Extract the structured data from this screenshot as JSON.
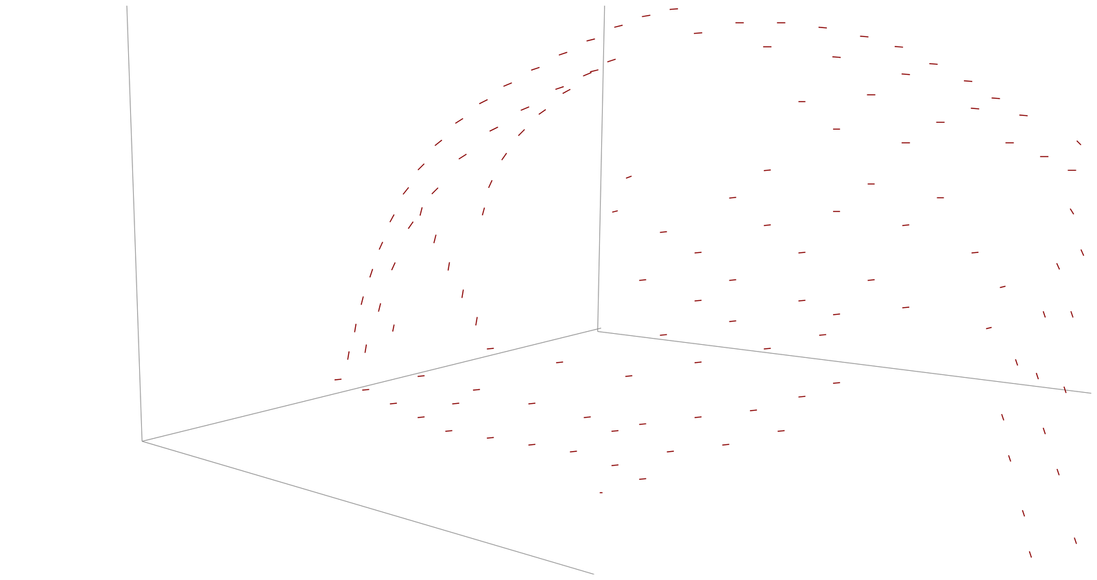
{
  "chart_data": {
    "type": "quiver",
    "color": "#8b0000",
    "grid": false,
    "tick_labels": false,
    "xlim": [
      0,
      1568
    ],
    "ylim": [
      0,
      829
    ],
    "x": [
      495,
      505,
      515,
      528,
      542,
      558,
      578,
      600,
      625,
      655,
      690,
      725,
      765,
      805,
      845,
      885,
      925,
      965,
      520,
      540,
      560,
      585,
      620,
      660,
      705,
      750,
      800,
      850,
      690,
      700,
      720,
      745,
      775,
      810,
      840,
      875,
      600,
      620,
      640,
      660,
      680,
      560,
      1000,
      1060,
      1120,
      1180,
      1240,
      1290,
      1340,
      1390,
      1430,
      1470,
      1100,
      1200,
      1300,
      1400,
      1250,
      1350,
      1450,
      1500,
      1540,
      1300,
      1200,
      1150,
      950,
      1000,
      1050,
      1100,
      1150,
      1200,
      1250,
      1300,
      1350,
      1400,
      1050,
      1150,
      1250,
      1000,
      920,
      880,
      900,
      1200,
      1300,
      1100,
      480,
      520,
      560,
      600,
      640,
      700,
      760,
      820,
      880,
      920,
      600,
      680,
      760,
      840,
      920,
      1000,
      1080,
      1150,
      1200,
      700,
      800,
      900,
      1000,
      1100,
      1180,
      950,
      1050,
      650,
      1040,
      960,
      880,
      1120,
      860,
      1550,
      1540,
      1520,
      1500,
      1460,
      1440,
      1450,
      1470,
      1480,
      1540,
      1530,
      1520,
      1545,
      1500,
      1490,
      1555,
      1420,
      1440
    ],
    "y": [
      319,
      359,
      399,
      439,
      479,
      519,
      559,
      594,
      629,
      661,
      689,
      714,
      737,
      759,
      779,
      799,
      814,
      824,
      329,
      389,
      449,
      509,
      559,
      609,
      649,
      679,
      709,
      734,
      529,
      569,
      609,
      644,
      674,
      704,
      729,
      749,
      529,
      489,
      449,
      409,
      369,
      359,
      789,
      804,
      804,
      797,
      784,
      769,
      744,
      719,
      694,
      669,
      769,
      754,
      729,
      679,
      699,
      659,
      629,
      609,
      589,
      629,
      649,
      689,
      499,
      469,
      549,
      509,
      469,
      529,
      569,
      509,
      549,
      469,
      429,
      399,
      429,
      399,
      429,
      529,
      579,
      379,
      389,
      589,
      284,
      269,
      249,
      229,
      209,
      199,
      189,
      179,
      159,
      139,
      289,
      269,
      249,
      229,
      219,
      229,
      239,
      259,
      279,
      329,
      309,
      289,
      309,
      329,
      349,
      349,
      369,
      249,
      189,
      179,
      209,
      209,
      119,
      629,
      529,
      449,
      379,
      309,
      229,
      169,
      89,
      29,
      379,
      269,
      149,
      49,
      209,
      289,
      469,
      359,
      419
    ],
    "u": [
      2,
      2,
      3,
      4,
      5,
      6,
      8,
      9,
      10,
      11,
      12,
      12,
      12,
      12,
      12,
      12,
      12,
      12,
      2,
      3,
      5,
      7,
      9,
      11,
      12,
      12,
      12,
      12,
      3,
      5,
      7,
      9,
      10,
      11,
      12,
      12,
      3,
      3,
      2,
      2,
      2,
      2,
      12,
      12,
      12,
      12,
      12,
      12,
      12,
      12,
      12,
      12,
      12,
      12,
      12,
      12,
      12,
      12,
      12,
      12,
      12,
      12,
      10,
      10,
      10,
      10,
      10,
      10,
      10,
      10,
      10,
      10,
      10,
      10,
      10,
      10,
      10,
      10,
      10,
      8,
      8,
      10,
      10,
      10,
      10,
      10,
      10,
      10,
      10,
      10,
      10,
      10,
      10,
      10,
      10,
      10,
      10,
      10,
      10,
      10,
      10,
      10,
      10,
      10,
      10,
      10,
      10,
      10,
      10,
      10,
      10,
      10,
      10,
      10,
      10,
      10,
      4,
      6,
      5,
      4,
      3,
      3,
      3,
      3,
      3,
      3,
      3,
      3,
      3,
      3,
      3,
      3,
      4,
      8,
      8
    ],
    "v": [
      12,
      12,
      12,
      12,
      11,
      11,
      10,
      9,
      8,
      7,
      6,
      5,
      4,
      4,
      3,
      3,
      2,
      1,
      12,
      12,
      11,
      10,
      9,
      7,
      6,
      5,
      4,
      3,
      11,
      11,
      10,
      9,
      7,
      6,
      5,
      4,
      12,
      12,
      12,
      12,
      12,
      10,
      1,
      0,
      0,
      -1,
      -1,
      -1,
      -1,
      -1,
      -1,
      -1,
      0,
      -1,
      -1,
      -1,
      0,
      0,
      0,
      0,
      0,
      0,
      0,
      0,
      1,
      1,
      1,
      1,
      1,
      0,
      0,
      1,
      0,
      1,
      1,
      1,
      1,
      1,
      1,
      2,
      3,
      1,
      1,
      1,
      1,
      1,
      1,
      1,
      1,
      1,
      1,
      1,
      1,
      1,
      1,
      1,
      1,
      1,
      1,
      1,
      1,
      1,
      1,
      1,
      1,
      1,
      1,
      1,
      1,
      1,
      1,
      1,
      1,
      1,
      1,
      1,
      0,
      -6,
      -8,
      -9,
      -9,
      -9,
      -9,
      -9,
      -9,
      -9,
      -9,
      -9,
      -9,
      -9,
      -9,
      -9,
      -9,
      2,
      2
    ],
    "frame_lines": [
      [
        175,
        829,
        197,
        194
      ],
      [
        197,
        194,
        850,
        0
      ],
      [
        197,
        194,
        860,
        359
      ],
      [
        865,
        829,
        855,
        354
      ],
      [
        855,
        354,
        1568,
        264
      ]
    ],
    "frame_color": "#888888"
  }
}
